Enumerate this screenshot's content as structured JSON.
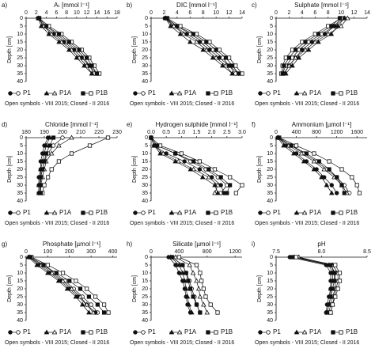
{
  "chart_data": [
    {
      "type": "line",
      "panel": "a)",
      "title": "Aₜ [mmol l⁻¹]",
      "ylabel": "Depth [cm]",
      "note": "Open symbols - VIII 2015; Closed - II 2016",
      "depths": [
        0,
        5,
        10,
        15,
        20,
        25,
        30,
        35
      ],
      "xlim": [
        0,
        18
      ],
      "xticks": [
        0,
        2,
        4,
        6,
        8,
        10,
        12,
        14,
        16,
        18
      ],
      "ylim": [
        0,
        40
      ],
      "yticks": [
        0,
        5,
        10,
        15,
        20,
        25,
        30,
        35,
        40
      ],
      "series": [
        {
          "name": "P1",
          "marker": "circle",
          "values_open": [
            2.5,
            4,
            6,
            8,
            10,
            11.5,
            12.5,
            13.5
          ],
          "values_closed": [
            2.4,
            3.5,
            5.5,
            7.5,
            9.5,
            11,
            12.5,
            14
          ]
        },
        {
          "name": "P1A",
          "marker": "triangle",
          "values_open": [
            2.5,
            3.5,
            5,
            7,
            9,
            10.5,
            12,
            13
          ],
          "values_closed": [
            2.4,
            3,
            4.5,
            6.5,
            8.5,
            10,
            11.5,
            13
          ]
        },
        {
          "name": "P1B",
          "marker": "square",
          "values_open": [
            2.6,
            4.5,
            7,
            9,
            11,
            12.5,
            13.5,
            14.5
          ],
          "values_closed": [
            2.5,
            4,
            6.5,
            8.5,
            10.5,
            12,
            13,
            14
          ]
        }
      ]
    },
    {
      "type": "line",
      "panel": "b)",
      "title": "DIC [mmol l⁻¹]",
      "ylabel": "Depth [cm]",
      "note": "Open symbols - VIII 2015; Closed - II 2016",
      "depths": [
        0,
        5,
        10,
        15,
        20,
        25,
        30,
        35
      ],
      "xlim": [
        0,
        14
      ],
      "xticks": [
        0,
        2,
        4,
        6,
        8,
        10,
        12,
        14
      ],
      "ylim": [
        0,
        40
      ],
      "yticks": [
        0,
        5,
        10,
        15,
        20,
        25,
        30,
        35,
        40
      ],
      "series": [
        {
          "name": "P1",
          "marker": "circle",
          "values_open": [
            2.2,
            4,
            6,
            8,
            9.5,
            11,
            12,
            13
          ],
          "values_closed": [
            2.1,
            3.5,
            5.5,
            7.5,
            9,
            10.5,
            12,
            13.5
          ]
        },
        {
          "name": "P1A",
          "marker": "triangle",
          "values_open": [
            2.3,
            3.5,
            5,
            7,
            8.5,
            10,
            11.5,
            12.5
          ],
          "values_closed": [
            2.2,
            3,
            4.5,
            6,
            8,
            9.5,
            11,
            12.5
          ]
        },
        {
          "name": "P1B",
          "marker": "square",
          "values_open": [
            2.5,
            4.5,
            7,
            9,
            10.5,
            12,
            13,
            14
          ],
          "values_closed": [
            2.4,
            4,
            6.5,
            8.5,
            10,
            11.5,
            12.5,
            13.5
          ]
        }
      ]
    },
    {
      "type": "line",
      "panel": "c)",
      "title": "Sulphate [mmol l⁻¹]",
      "ylabel": "Depth [cm]",
      "note": "Open symbols - VIII 2015; Closed - II 2016",
      "depths": [
        0,
        5,
        10,
        15,
        20,
        25,
        30,
        35
      ],
      "xlim": [
        0,
        14
      ],
      "xticks": [
        0,
        2,
        4,
        6,
        8,
        10,
        12,
        14
      ],
      "ylim": [
        0,
        40
      ],
      "yticks": [
        0,
        5,
        10,
        15,
        20,
        25,
        30,
        35,
        40
      ],
      "series": [
        {
          "name": "P1",
          "marker": "circle",
          "values_open": [
            10.5,
            9,
            7,
            5,
            3.5,
            2.5,
            1.5,
            1
          ],
          "values_closed": [
            10,
            9,
            7.5,
            5.5,
            4,
            3,
            2,
            1.2
          ]
        },
        {
          "name": "P1A",
          "marker": "triangle",
          "values_open": [
            11,
            10,
            8,
            6,
            4.5,
            3,
            2,
            1.2
          ],
          "values_closed": [
            10.5,
            9.5,
            8.5,
            6.5,
            5,
            3.5,
            2.5,
            1.5
          ]
        },
        {
          "name": "P1B",
          "marker": "square",
          "values_open": [
            10,
            8,
            6,
            4,
            2.5,
            1.5,
            1,
            0.8
          ],
          "values_closed": [
            9.8,
            8.5,
            6.5,
            4.5,
            3,
            2,
            1.2,
            1
          ]
        }
      ]
    },
    {
      "type": "line",
      "panel": "d)",
      "title": "Chloride [mmol l⁻¹]",
      "ylabel": "Depth [cm]",
      "note": "Open symbols - VIII 2015; Closed - II 2016",
      "depths": [
        0,
        5,
        10,
        15,
        20,
        25,
        30,
        35
      ],
      "xlim": [
        180,
        230
      ],
      "xticks": [
        180,
        190,
        200,
        210,
        220,
        230
      ],
      "ylim": [
        0,
        40
      ],
      "yticks": [
        0,
        5,
        10,
        15,
        20,
        25,
        30,
        35,
        40
      ],
      "series": [
        {
          "name": "P1",
          "marker": "circle",
          "values_open": [
            200,
            195,
            192,
            190,
            189,
            188,
            188,
            187
          ],
          "values_closed": [
            192,
            190,
            189,
            188,
            188,
            187,
            187,
            187
          ]
        },
        {
          "name": "P1A",
          "marker": "triangle",
          "values_open": [
            205,
            198,
            194,
            191,
            190,
            189,
            188,
            188
          ],
          "values_closed": [
            193,
            191,
            190,
            189,
            188,
            188,
            187,
            187
          ]
        },
        {
          "name": "P1B",
          "marker": "square",
          "values_open": [
            225,
            215,
            205,
            198,
            194,
            192,
            190,
            189
          ],
          "values_closed": [
            195,
            193,
            191,
            190,
            189,
            188,
            188,
            188
          ]
        }
      ]
    },
    {
      "type": "line",
      "panel": "e)",
      "title": "Hydrogen sulphide [mmol l⁻¹]",
      "ylabel": "Depth [cm]",
      "note": "Open symbols - VIII 2015; Closed - II 2016",
      "depths": [
        0,
        5,
        10,
        15,
        20,
        25,
        30,
        35
      ],
      "xlim": [
        0,
        3
      ],
      "xticks": [
        {
          "value": 0,
          "label": "0.0"
        },
        0.5,
        {
          "value": 1,
          "label": "1.0"
        },
        1.5,
        {
          "value": 2,
          "label": "2.0"
        },
        2.5,
        {
          "value": 3,
          "label": "3.0"
        }
      ],
      "ylim": [
        0,
        40
      ],
      "yticks": [
        0,
        5,
        10,
        15,
        20,
        25,
        30,
        35,
        40
      ],
      "series": [
        {
          "name": "P1",
          "marker": "circle",
          "values_open": [
            0,
            0.2,
            0.8,
            1.3,
            1.8,
            2.2,
            2.5,
            2.3
          ],
          "values_closed": [
            0,
            0.1,
            0.5,
            1.1,
            1.6,
            2,
            2.3,
            2.4
          ]
        },
        {
          "name": "P1A",
          "marker": "triangle",
          "values_open": [
            0,
            0.1,
            0.4,
            0.9,
            1.4,
            1.9,
            2.2,
            2.1
          ],
          "values_closed": [
            0,
            0.1,
            0.3,
            0.8,
            1.3,
            1.7,
            2.1,
            2.2
          ]
        },
        {
          "name": "P1B",
          "marker": "square",
          "values_open": [
            0,
            0.3,
            1,
            1.6,
            2.1,
            2.6,
            3,
            2.8
          ],
          "values_closed": [
            0,
            0.2,
            0.8,
            1.4,
            1.9,
            2.3,
            2.6,
            2.5
          ]
        }
      ]
    },
    {
      "type": "line",
      "panel": "f)",
      "title": "Ammonium [µmol l⁻¹]",
      "ylabel": "Depth [cm]",
      "note": "Open symbols - VIII 2015; Closed - II 2016",
      "depths": [
        0,
        5,
        10,
        15,
        20,
        25,
        30,
        35
      ],
      "xlim": [
        0,
        1800
      ],
      "xticks": [
        0,
        400,
        800,
        1200,
        1600
      ],
      "ylim": [
        0,
        40
      ],
      "yticks": [
        0,
        5,
        10,
        15,
        20,
        25,
        30,
        35,
        40
      ],
      "series": [
        {
          "name": "P1",
          "marker": "circle",
          "values_open": [
            50,
            300,
            550,
            800,
            1000,
            1200,
            1350,
            1450
          ],
          "values_closed": [
            40,
            200,
            400,
            600,
            800,
            950,
            1100,
            1200
          ]
        },
        {
          "name": "P1A",
          "marker": "triangle",
          "values_open": [
            40,
            250,
            500,
            750,
            950,
            1150,
            1300,
            1400
          ],
          "values_closed": [
            30,
            150,
            350,
            550,
            750,
            900,
            1000,
            1100
          ]
        },
        {
          "name": "P1B",
          "marker": "square",
          "values_open": [
            60,
            400,
            750,
            1050,
            1300,
            1500,
            1600,
            1650
          ],
          "values_closed": [
            50,
            300,
            600,
            850,
            1050,
            1200,
            1300,
            1350
          ]
        }
      ]
    },
    {
      "type": "line",
      "panel": "g)",
      "title": "Phosphate [µmol l⁻¹]",
      "ylabel": "Depth [cm]",
      "note": "Open symbols - VIII 2015; Closed - II 2016",
      "depths": [
        0,
        5,
        10,
        15,
        20,
        25,
        30,
        35
      ],
      "xlim": [
        0,
        420
      ],
      "xticks": [
        0,
        100,
        200,
        300,
        400
      ],
      "ylim": [
        0,
        40
      ],
      "yticks": [
        0,
        5,
        10,
        15,
        20,
        25,
        30,
        35,
        40
      ],
      "series": [
        {
          "name": "P1",
          "marker": "circle",
          "values_open": [
            20,
            80,
            130,
            180,
            220,
            260,
            300,
            330
          ],
          "values_closed": [
            15,
            60,
            110,
            160,
            200,
            240,
            280,
            320
          ]
        },
        {
          "name": "P1A",
          "marker": "triangle",
          "values_open": [
            15,
            70,
            120,
            170,
            210,
            250,
            280,
            310
          ],
          "values_closed": [
            10,
            50,
            100,
            150,
            190,
            230,
            260,
            290
          ]
        },
        {
          "name": "P1B",
          "marker": "square",
          "values_open": [
            25,
            100,
            170,
            230,
            280,
            320,
            360,
            380
          ],
          "values_closed": [
            20,
            80,
            140,
            200,
            250,
            290,
            330,
            360
          ]
        }
      ]
    },
    {
      "type": "line",
      "panel": "h)",
      "title": "Silicate [µmol l⁻¹]",
      "ylabel": "Depth [cm]",
      "note": "Open symbols - VIII 2015; Closed - II 2016",
      "depths": [
        0,
        5,
        10,
        15,
        20,
        25,
        30,
        35
      ],
      "xlim": [
        0,
        1300
      ],
      "xticks": [
        0,
        400,
        800,
        1200
      ],
      "ylim": [
        0,
        40
      ],
      "yticks": [
        0,
        5,
        10,
        15,
        20,
        25,
        30,
        35,
        40
      ],
      "series": [
        {
          "name": "P1",
          "marker": "circle",
          "values_open": [
            300,
            450,
            500,
            550,
            580,
            620,
            650,
            700
          ],
          "values_closed": [
            250,
            350,
            400,
            450,
            480,
            500,
            520,
            560
          ]
        },
        {
          "name": "P1A",
          "marker": "triangle",
          "values_open": [
            350,
            550,
            600,
            650,
            680,
            700,
            750,
            800
          ],
          "values_closed": [
            280,
            400,
            450,
            480,
            500,
            520,
            540,
            580
          ]
        },
        {
          "name": "P1B",
          "marker": "square",
          "values_open": [
            400,
            650,
            700,
            720,
            750,
            780,
            850,
            950
          ],
          "values_closed": [
            300,
            450,
            500,
            530,
            560,
            600,
            650,
            700
          ]
        }
      ]
    },
    {
      "type": "line",
      "panel": "i)",
      "title": "pH",
      "ylabel": "Depth [cm]",
      "note": "Open symbols - VIII 2015; Closed - II 2016",
      "depths": [
        0,
        5,
        10,
        15,
        20,
        25,
        30,
        35
      ],
      "xlim": [
        7.5,
        8.5
      ],
      "xticks": [
        7.5,
        {
          "value": 8,
          "label": "8.0"
        },
        8.5
      ],
      "ylim": [
        0,
        40
      ],
      "yticks": [
        0,
        5,
        10,
        15,
        20,
        25,
        30,
        35,
        40
      ],
      "series": [
        {
          "name": "P1",
          "marker": "circle",
          "values_open": [
            7.7,
            8.1,
            8.15,
            8.15,
            8.15,
            8.12,
            8.1,
            8.08
          ],
          "values_closed": [
            7.65,
            8.05,
            8.1,
            8.1,
            8.1,
            8.08,
            8.06,
            8.05
          ]
        },
        {
          "name": "P1A",
          "marker": "triangle",
          "values_open": [
            7.75,
            8.12,
            8.18,
            8.18,
            8.16,
            8.14,
            8.12,
            8.1
          ],
          "values_closed": [
            7.7,
            8.08,
            8.12,
            8.12,
            8.1,
            8.1,
            8.08,
            8.06
          ]
        },
        {
          "name": "P1B",
          "marker": "square",
          "values_open": [
            7.72,
            8.15,
            8.2,
            8.2,
            8.18,
            8.15,
            8.12,
            8.1
          ],
          "values_closed": [
            7.68,
            8.1,
            8.14,
            8.14,
            8.12,
            8.1,
            8.08,
            8.06
          ]
        }
      ]
    }
  ]
}
